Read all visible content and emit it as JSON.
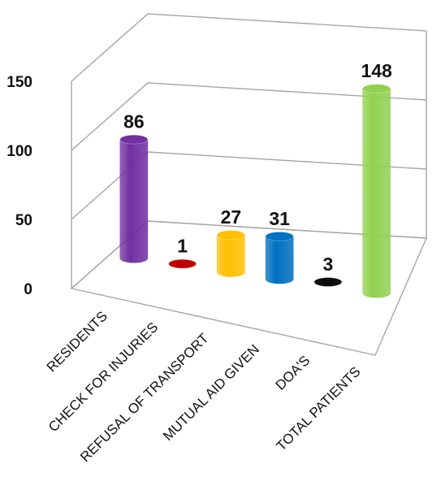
{
  "chart_data": {
    "type": "bar",
    "title": "",
    "xlabel": "",
    "ylabel": "",
    "ylim": [
      0,
      150
    ],
    "yticks": [
      0,
      50,
      100,
      150
    ],
    "grid": true,
    "style": "3d-cylinder",
    "categories": [
      "RESIDENTS",
      "CHECK FOR INJURIES",
      "REFUSAL OF TRANSPORT",
      "MUTUAL AID GIVEN",
      "DOA'S",
      "TOTAL PATIENTS"
    ],
    "values": [
      86,
      1,
      27,
      31,
      3,
      148
    ],
    "data_labels": [
      "86",
      "1",
      "27",
      "31",
      "3",
      "148"
    ],
    "colors": [
      "#7030a0",
      "#c00000",
      "#ffc000",
      "#0070c0",
      "#0d0d0d",
      "#92d050"
    ]
  }
}
